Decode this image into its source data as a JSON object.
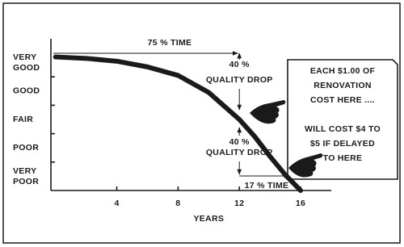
{
  "chart_data": {
    "type": "line",
    "x_label": "YEARS",
    "y_categories": [
      "VERY GOOD",
      "GOOD",
      "FAIR",
      "POOR",
      "VERY POOR"
    ],
    "xlim": [
      -0.3,
      18
    ],
    "xticks": [
      4,
      8,
      12,
      16
    ],
    "ylim": [
      0,
      5
    ],
    "series": [
      {
        "color": "#1a1a1a",
        "x": [
          0,
          2,
          4,
          6,
          8,
          10,
          12,
          13,
          14,
          15,
          16
        ],
        "values": [
          4.7,
          4.65,
          4.55,
          4.35,
          4.05,
          3.45,
          2.5,
          1.9,
          1.2,
          0.55,
          0
        ]
      }
    ],
    "annotations": {
      "time_75": "75 % TIME",
      "drop_1": [
        "40 %",
        "QUALITY DROP"
      ],
      "drop_2": [
        "40 %",
        "QUALITY DROP"
      ],
      "time_17": "17 % TIME",
      "box_1": [
        "EACH $1.00 OF",
        "RENOVATION",
        "COST HERE ...."
      ],
      "box_2": [
        "WILL COST $4 TO",
        "$5 IF DELAYED",
        "TO HERE"
      ]
    }
  }
}
